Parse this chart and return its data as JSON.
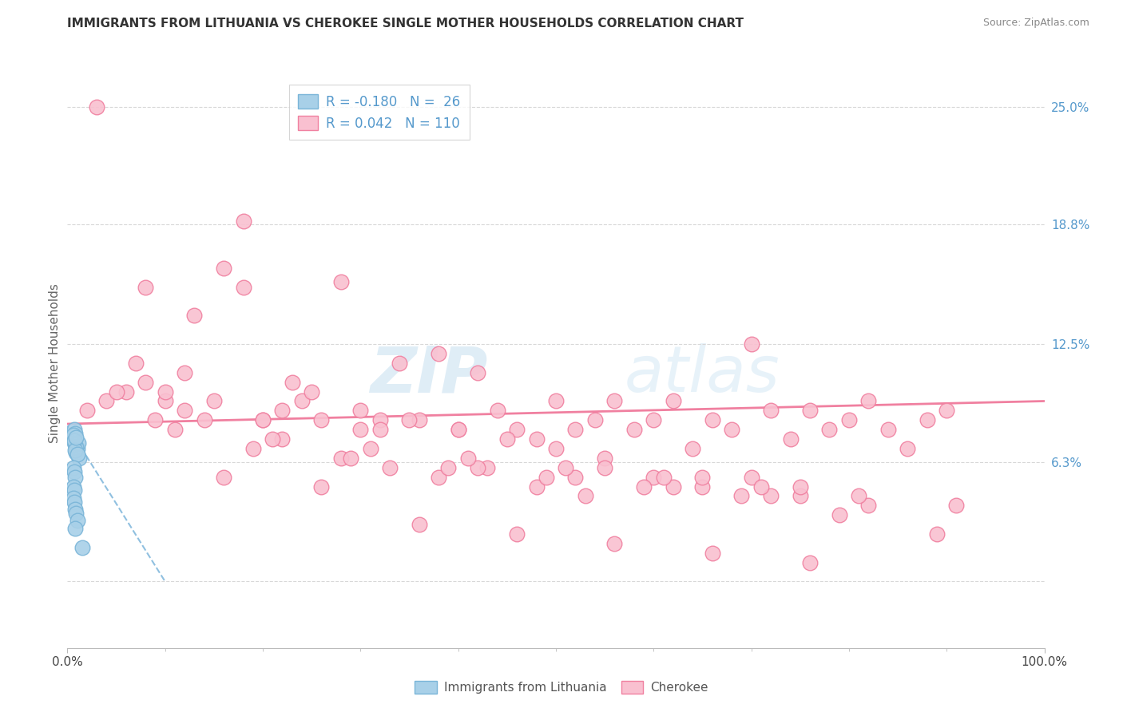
{
  "title": "IMMIGRANTS FROM LITHUANIA VS CHEROKEE SINGLE MOTHER HOUSEHOLDS CORRELATION CHART",
  "source": "Source: ZipAtlas.com",
  "ylabel": "Single Mother Households",
  "r_blue": -0.18,
  "n_blue": 26,
  "r_pink": 0.042,
  "n_pink": 110,
  "blue_color": "#a8d0e8",
  "pink_color": "#f9c0d0",
  "blue_edge_color": "#7ab5d8",
  "pink_edge_color": "#f080a0",
  "blue_line_color": "#90c0e0",
  "pink_line_color": "#f080a0",
  "legend_blue_label": "Immigrants from Lithuania",
  "legend_pink_label": "Cherokee",
  "watermark_color": "#d8eef8",
  "grid_color": "#d8d8d8",
  "right_tick_color": "#5599cc",
  "title_color": "#333333",
  "source_color": "#888888",
  "ylabel_color": "#666666",
  "xlim": [
    0,
    1.0
  ],
  "ylim": [
    -0.035,
    0.265
  ],
  "ytick_vals": [
    0.0,
    0.063,
    0.125,
    0.188,
    0.25
  ],
  "ytick_labels": [
    "",
    "6.3%",
    "12.5%",
    "18.8%",
    "25.0%"
  ],
  "blue_scatter_x": [
    0.005,
    0.007,
    0.008,
    0.009,
    0.01,
    0.011,
    0.012,
    0.008,
    0.009,
    0.006,
    0.007,
    0.008,
    0.009,
    0.01,
    0.006,
    0.007,
    0.008,
    0.006,
    0.007,
    0.006,
    0.007,
    0.008,
    0.009,
    0.01,
    0.008,
    0.015
  ],
  "blue_scatter_y": [
    0.075,
    0.08,
    0.072,
    0.068,
    0.07,
    0.073,
    0.065,
    0.078,
    0.071,
    0.077,
    0.074,
    0.069,
    0.076,
    0.067,
    0.06,
    0.058,
    0.055,
    0.05,
    0.048,
    0.044,
    0.042,
    0.038,
    0.036,
    0.032,
    0.028,
    0.018
  ],
  "pink_scatter_x": [
    0.02,
    0.04,
    0.06,
    0.08,
    0.1,
    0.12,
    0.14,
    0.16,
    0.18,
    0.2,
    0.22,
    0.24,
    0.26,
    0.28,
    0.3,
    0.32,
    0.34,
    0.36,
    0.38,
    0.4,
    0.42,
    0.44,
    0.46,
    0.48,
    0.5,
    0.52,
    0.54,
    0.56,
    0.58,
    0.6,
    0.62,
    0.64,
    0.66,
    0.68,
    0.7,
    0.72,
    0.74,
    0.76,
    0.78,
    0.8,
    0.82,
    0.84,
    0.86,
    0.88,
    0.9,
    0.05,
    0.1,
    0.15,
    0.2,
    0.25,
    0.3,
    0.35,
    0.4,
    0.45,
    0.5,
    0.55,
    0.6,
    0.65,
    0.7,
    0.75,
    0.08,
    0.13,
    0.18,
    0.23,
    0.28,
    0.33,
    0.38,
    0.43,
    0.48,
    0.53,
    0.07,
    0.12,
    0.22,
    0.32,
    0.42,
    0.52,
    0.62,
    0.72,
    0.82,
    0.09,
    0.19,
    0.29,
    0.39,
    0.49,
    0.59,
    0.69,
    0.79,
    0.89,
    0.11,
    0.21,
    0.31,
    0.41,
    0.51,
    0.61,
    0.71,
    0.81,
    0.91,
    0.03,
    0.16,
    0.26,
    0.36,
    0.46,
    0.56,
    0.66,
    0.76,
    0.55,
    0.65,
    0.75
  ],
  "pink_scatter_y": [
    0.09,
    0.095,
    0.1,
    0.105,
    0.095,
    0.09,
    0.085,
    0.165,
    0.155,
    0.085,
    0.09,
    0.095,
    0.085,
    0.158,
    0.09,
    0.085,
    0.115,
    0.085,
    0.12,
    0.08,
    0.11,
    0.09,
    0.08,
    0.075,
    0.095,
    0.08,
    0.085,
    0.095,
    0.08,
    0.085,
    0.095,
    0.07,
    0.085,
    0.08,
    0.125,
    0.09,
    0.075,
    0.09,
    0.08,
    0.085,
    0.095,
    0.08,
    0.07,
    0.085,
    0.09,
    0.1,
    0.1,
    0.095,
    0.085,
    0.1,
    0.08,
    0.085,
    0.08,
    0.075,
    0.07,
    0.065,
    0.055,
    0.05,
    0.055,
    0.045,
    0.155,
    0.14,
    0.19,
    0.105,
    0.065,
    0.06,
    0.055,
    0.06,
    0.05,
    0.045,
    0.115,
    0.11,
    0.075,
    0.08,
    0.06,
    0.055,
    0.05,
    0.045,
    0.04,
    0.085,
    0.07,
    0.065,
    0.06,
    0.055,
    0.05,
    0.045,
    0.035,
    0.025,
    0.08,
    0.075,
    0.07,
    0.065,
    0.06,
    0.055,
    0.05,
    0.045,
    0.04,
    0.25,
    0.055,
    0.05,
    0.03,
    0.025,
    0.02,
    0.015,
    0.01,
    0.06,
    0.055,
    0.05
  ],
  "pink_trend_x0": 0.0,
  "pink_trend_y0": 0.083,
  "pink_trend_x1": 1.0,
  "pink_trend_y1": 0.095,
  "blue_trend_x0": 0.0,
  "blue_trend_y0": 0.082,
  "blue_trend_x1": 0.1,
  "blue_trend_y1": 0.0
}
